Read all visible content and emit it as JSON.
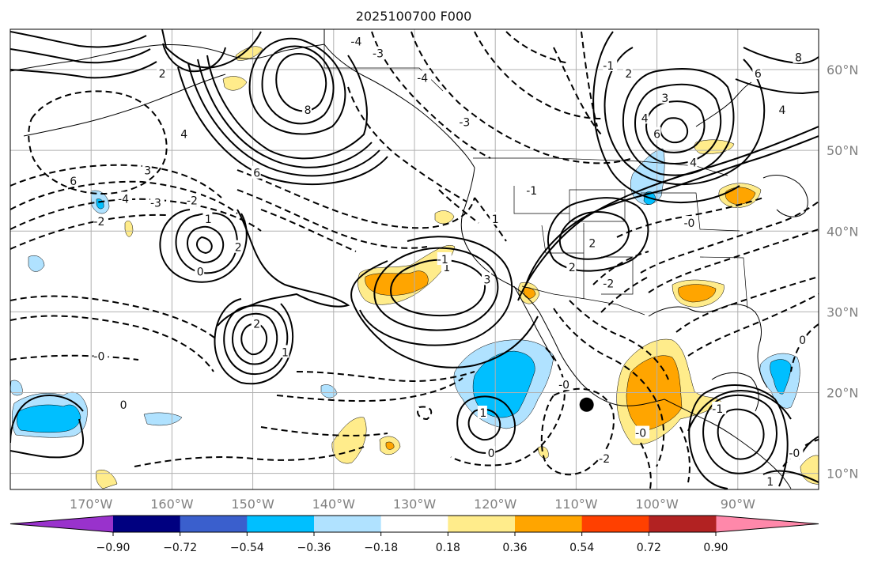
{
  "title": "2025100700 F000",
  "map": {
    "lon_range": [
      -180,
      -80
    ],
    "lat_range": [
      8,
      65
    ],
    "lon_ticks": [
      {
        "value": -170,
        "label": "170°W"
      },
      {
        "value": -160,
        "label": "160°W"
      },
      {
        "value": -150,
        "label": "150°W"
      },
      {
        "value": -140,
        "label": "140°W"
      },
      {
        "value": -130,
        "label": "130°W"
      },
      {
        "value": -120,
        "label": "120°W"
      },
      {
        "value": -110,
        "label": "110°W"
      },
      {
        "value": -100,
        "label": "100°W"
      },
      {
        "value": -90,
        "label": "90°W"
      }
    ],
    "lat_ticks": [
      {
        "value": 10,
        "label": "10°N"
      },
      {
        "value": 20,
        "label": "20°N"
      },
      {
        "value": 30,
        "label": "30°N"
      },
      {
        "value": 40,
        "label": "40°N"
      },
      {
        "value": 50,
        "label": "50°N"
      },
      {
        "value": 60,
        "label": "60°N"
      }
    ],
    "grid": true,
    "marker": {
      "lon": -108.7,
      "lat": 18.5,
      "color": "#000000"
    }
  },
  "colorbar": {
    "levels": [
      "−0.90",
      "−0.72",
      "−0.54",
      "−0.36",
      "−0.18",
      "0.18",
      "0.36",
      "0.54",
      "0.72",
      "0.90"
    ],
    "colors": [
      "#9932cc",
      "#000080",
      "#3a5fcd",
      "#00bfff",
      "#b0e2ff",
      "#ffffff",
      "#ffec8b",
      "#ffa500",
      "#ff4000",
      "#b22222",
      "#ff88aa"
    ]
  },
  "contour_labels": [
    {
      "text": "6",
      "lon": -149.5,
      "lat": 47.2
    },
    {
      "text": "8",
      "lon": -143.2,
      "lat": 55.0
    },
    {
      "text": "4",
      "lon": -158.5,
      "lat": 52.0
    },
    {
      "text": "3",
      "lon": -163.0,
      "lat": 47.5
    },
    {
      "text": "2",
      "lon": -161.2,
      "lat": 59.5
    },
    {
      "text": "-4",
      "lon": -166.0,
      "lat": 44.0
    },
    {
      "text": "6",
      "lon": -172.2,
      "lat": 46.2
    },
    {
      "text": "-3",
      "lon": -162.0,
      "lat": 43.5
    },
    {
      "text": "-2",
      "lon": -169.0,
      "lat": 41.2
    },
    {
      "text": "-2",
      "lon": -157.5,
      "lat": 43.8
    },
    {
      "text": "-4",
      "lon": -137.2,
      "lat": 63.5
    },
    {
      "text": "-3",
      "lon": -134.5,
      "lat": 62.0
    },
    {
      "text": "-4",
      "lon": -129.0,
      "lat": 59.0
    },
    {
      "text": "-3",
      "lon": -123.8,
      "lat": 53.5
    },
    {
      "text": "1",
      "lon": -155.5,
      "lat": 41.5
    },
    {
      "text": "2",
      "lon": -151.8,
      "lat": 38.0
    },
    {
      "text": "0",
      "lon": -156.5,
      "lat": 35.0
    },
    {
      "text": "2",
      "lon": -149.5,
      "lat": 28.5
    },
    {
      "text": "1",
      "lon": -146.0,
      "lat": 25.0
    },
    {
      "text": "-0",
      "lon": -169.0,
      "lat": 24.5
    },
    {
      "text": "0",
      "lon": -166.0,
      "lat": 18.5
    },
    {
      "text": "1",
      "lon": -126.0,
      "lat": 35.5
    },
    {
      "text": "3",
      "lon": -121.0,
      "lat": 34.0
    },
    {
      "text": "1",
      "lon": -120.0,
      "lat": 41.5
    },
    {
      "text": "-1",
      "lon": -126.5,
      "lat": 36.5
    },
    {
      "text": "-1",
      "lon": -115.5,
      "lat": 45.0
    },
    {
      "text": "-1",
      "lon": -106.0,
      "lat": 60.5
    },
    {
      "text": "2",
      "lon": -103.5,
      "lat": 59.5
    },
    {
      "text": "3",
      "lon": -99.0,
      "lat": 56.5
    },
    {
      "text": "4",
      "lon": -101.5,
      "lat": 54.0
    },
    {
      "text": "6",
      "lon": -100.0,
      "lat": 52.0
    },
    {
      "text": "6",
      "lon": -87.5,
      "lat": 59.5
    },
    {
      "text": "4",
      "lon": -84.5,
      "lat": 55.0
    },
    {
      "text": "8",
      "lon": -82.5,
      "lat": 61.5
    },
    {
      "text": "4",
      "lon": -95.5,
      "lat": 48.5
    },
    {
      "text": "-0",
      "lon": -96.0,
      "lat": 41.0
    },
    {
      "text": "2",
      "lon": -108.0,
      "lat": 38.5
    },
    {
      "text": "2",
      "lon": -110.5,
      "lat": 35.5
    },
    {
      "text": "-2",
      "lon": -106.0,
      "lat": 33.5
    },
    {
      "text": "-0",
      "lon": -111.5,
      "lat": 21.0
    },
    {
      "text": "1",
      "lon": -121.5,
      "lat": 17.5
    },
    {
      "text": "0",
      "lon": -120.5,
      "lat": 12.5
    },
    {
      "text": "-2",
      "lon": -106.5,
      "lat": 11.8
    },
    {
      "text": "-0",
      "lon": -102.0,
      "lat": 15.0
    },
    {
      "text": "0",
      "lon": -82.0,
      "lat": 26.5
    },
    {
      "text": "-0",
      "lon": -83.0,
      "lat": 12.5
    },
    {
      "text": "-1",
      "lon": -92.5,
      "lat": 18.0
    },
    {
      "text": "1",
      "lon": -86.0,
      "lat": 9.0
    }
  ]
}
